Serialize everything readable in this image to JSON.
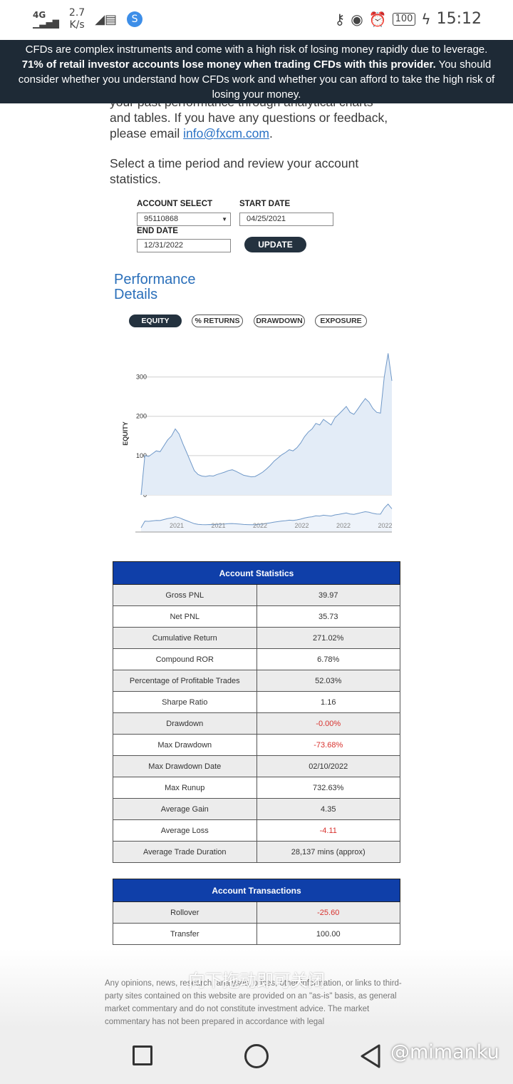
{
  "status_bar": {
    "network": "4G",
    "speed": "2.7",
    "speed_unit": "K/s",
    "battery": "100",
    "time": "15:12"
  },
  "risk_warning": {
    "line1": "CFDs are complex instruments and come with a high risk of losing money rapidly due to leverage.",
    "bold": "71% of retail investor accounts lose money when trading CFDs with this provider.",
    "rest": " You should consider whether you understand how CFDs work and whether you can afford to take the high risk of losing your money."
  },
  "intro": {
    "line_partial": "your past performance through analytical charts",
    "text": "and tables. If you have any questions or feedback, please email ",
    "email": "info@fxcm.com",
    "suffix": "."
  },
  "select_prompt": "Select a time period and review your account statistics.",
  "form": {
    "account_label": "ACCOUNT SELECT",
    "account_value": "95110868",
    "start_label": "START DATE",
    "start_value": "04/25/2021",
    "end_label": "END DATE",
    "end_value": "12/31/2022",
    "update_label": "UPDATE"
  },
  "performance": {
    "title_line1": "Performance",
    "title_line2": "Details",
    "tabs": [
      "EQUITY",
      "% RETURNS",
      "DRAWDOWN",
      "EXPOSURE"
    ],
    "active_tab": "EQUITY"
  },
  "chart_data": {
    "type": "area",
    "ylabel": "EQUITY",
    "ylim": [
      0,
      370
    ],
    "yticks": [
      0,
      100,
      200,
      300
    ],
    "x_tick_labels": [
      "2021",
      "2021",
      "2022",
      "2022",
      "2022",
      "2022"
    ],
    "series": [
      {
        "values": [
          0,
          100,
          98,
          105,
          112,
          110,
          125,
          140,
          150,
          168,
          155,
          130,
          108,
          85,
          62,
          52,
          48,
          47,
          49,
          48,
          52,
          55,
          58,
          62,
          64,
          60,
          55,
          50,
          48,
          46,
          47,
          52,
          58,
          66,
          75,
          86,
          94,
          102,
          108,
          115,
          112,
          120,
          132,
          148,
          160,
          168,
          182,
          178,
          192,
          185,
          178,
          196,
          205,
          215,
          225,
          210,
          205,
          218,
          232,
          245,
          236,
          220,
          210,
          208,
          300,
          360,
          290
        ]
      }
    ],
    "navigator": true,
    "grid": true
  },
  "account_statistics": {
    "title": "Account Statistics",
    "rows": [
      {
        "label": "Gross PNL",
        "value": "39.97",
        "neg": false
      },
      {
        "label": "Net PNL",
        "value": "35.73",
        "neg": false
      },
      {
        "label": "Cumulative Return",
        "value": "271.02%",
        "neg": false
      },
      {
        "label": "Compound ROR",
        "value": "6.78%",
        "neg": false
      },
      {
        "label": "Percentage of Profitable Trades",
        "value": "52.03%",
        "neg": false
      },
      {
        "label": "Sharpe Ratio",
        "value": "1.16",
        "neg": false
      },
      {
        "label": "Drawdown",
        "value": "-0.00%",
        "neg": true
      },
      {
        "label": "Max Drawdown",
        "value": "-73.68%",
        "neg": true
      },
      {
        "label": "Max Drawdown Date",
        "value": "02/10/2022",
        "neg": false
      },
      {
        "label": "Max Runup",
        "value": "732.63%",
        "neg": false
      },
      {
        "label": "Average Gain",
        "value": "4.35",
        "neg": false
      },
      {
        "label": "Average Loss",
        "value": "-4.11",
        "neg": true
      },
      {
        "label": "Average Trade Duration",
        "value": "28,137 mins (approx)",
        "neg": false
      }
    ]
  },
  "account_transactions": {
    "title": "Account Transactions",
    "rows": [
      {
        "label": "Rollover",
        "value": "-25.60",
        "neg": true
      },
      {
        "label": "Transfer",
        "value": "100.00",
        "neg": false
      }
    ]
  },
  "disclaimer": "Any opinions, news, research, analyses, prices, other information, or links to third-party sites contained on this website are provided on an \"as-is\" basis, as general market commentary and do not constitute investment advice. The market commentary has not been prepared in accordance with legal",
  "overlay_text": "向下拖动即可关闭",
  "watermark": "@mimanku",
  "colors": {
    "banner_bg": "#1e2a36",
    "table_header": "#0f3fa9",
    "negative": "#d8322e",
    "link": "#2a72c5"
  }
}
